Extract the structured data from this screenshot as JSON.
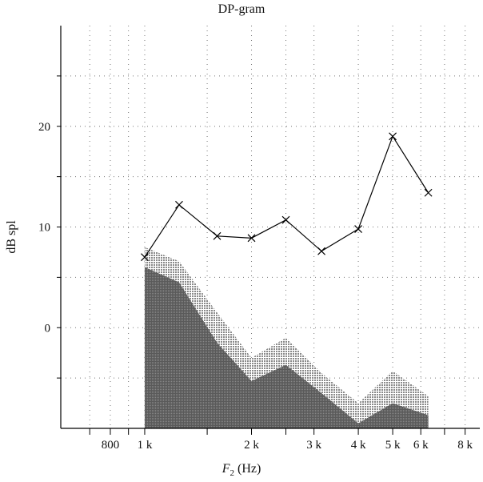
{
  "chart_data": {
    "type": "line",
    "title": "DP-gram",
    "xlabel_var": "F",
    "xlabel_sub": "2",
    "xlabel_unit": "(Hz)",
    "ylabel": "dB spl",
    "x_scale": "log",
    "xlim": [
      580,
      8800
    ],
    "ylim": [
      -10,
      30
    ],
    "grid": true,
    "x_tick_labels": [
      {
        "value": 800,
        "label": "800"
      },
      {
        "value": 1000,
        "label": "1 k"
      },
      {
        "value": 2000,
        "label": "2 k"
      },
      {
        "value": 3000,
        "label": "3 k"
      },
      {
        "value": 4000,
        "label": "4 k"
      },
      {
        "value": 5000,
        "label": "5 k"
      },
      {
        "value": 6000,
        "label": "6 k"
      },
      {
        "value": 8000,
        "label": "8 k"
      }
    ],
    "y_tick_labels": [
      {
        "value": 0,
        "label": "0"
      },
      {
        "value": 10,
        "label": "10"
      },
      {
        "value": 20,
        "label": "20"
      }
    ],
    "series": [
      {
        "marker": "x",
        "color": "#000000",
        "x": [
          1000,
          1250,
          1600,
          2000,
          2500,
          3150,
          4000,
          5000,
          6300
        ],
        "y": [
          7.0,
          12.2,
          9.1,
          8.9,
          10.7,
          7.6,
          9.8,
          19.0,
          13.4
        ]
      }
    ],
    "noise_floor": {
      "x": [
        1000,
        1250,
        1600,
        2000,
        2500,
        3150,
        4000,
        5000,
        6300
      ],
      "upper": [
        8.0,
        6.6,
        1.5,
        -3.0,
        -1.0,
        -4.5,
        -7.5,
        -4.3,
        -6.8
      ],
      "lower": [
        6.0,
        4.5,
        -1.5,
        -5.3,
        -3.7,
        -6.5,
        -9.5,
        -7.5,
        -8.7
      ],
      "upper_color": "#8a8a8a",
      "lower_color": "#5a5a5a"
    }
  }
}
